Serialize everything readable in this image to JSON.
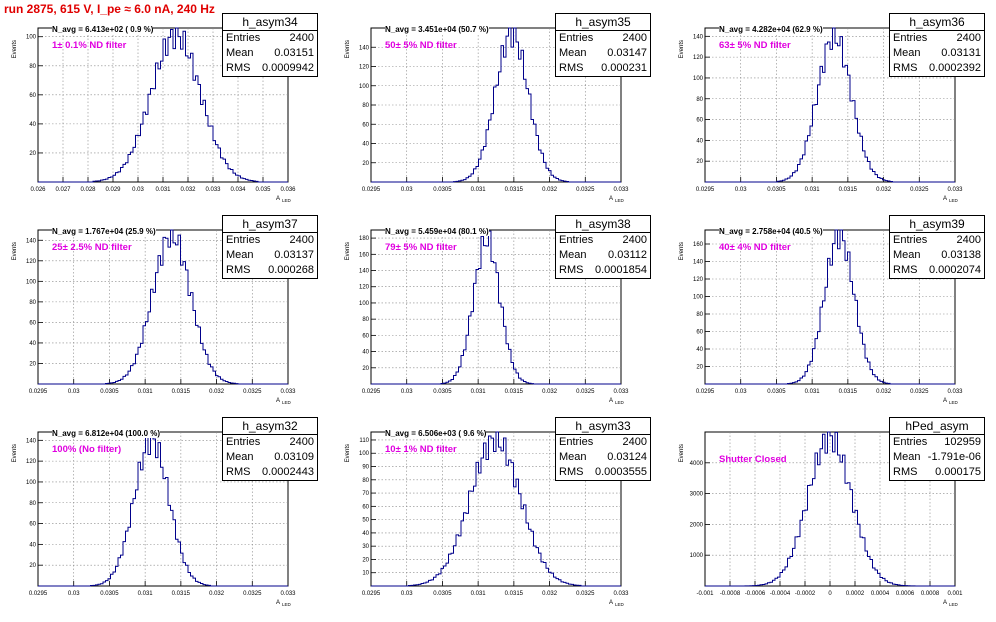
{
  "header": {
    "title": "run 2875,   615 V, I_pe ≈ 6.0 nA, 240 Hz"
  },
  "stat_labels": {
    "entries": "Entries",
    "mean": "Mean",
    "rms": "RMS"
  },
  "axis_labels": {
    "y": "Events",
    "x": "A",
    "x_sub": "LED"
  },
  "colors": {
    "histogram": "#00008b",
    "annotation": "#e000e0",
    "title": "#e00000",
    "grid": "#888888"
  },
  "chart_data": [
    {
      "type": "bar",
      "name": "h_asym34",
      "navg": "N_avg = 6.413e+02 ( 0.9 %)",
      "filter": "1± 0.1% ND filter",
      "entries": "2400",
      "mean": "0.03151",
      "rms": "0.0009942",
      "mean_value": 0.03151,
      "rms_value": 0.0009942,
      "peak": 101,
      "xlim": [
        0.026,
        0.036
      ],
      "ylim": [
        0,
        106
      ],
      "xticks": [
        "0.026",
        "0.027",
        "0.028",
        "0.029",
        "0.03",
        "0.031",
        "0.032",
        "0.033",
        "0.034",
        "0.035",
        "0.036"
      ],
      "yticks": [
        "20",
        "40",
        "60",
        "80",
        "100"
      ],
      "grid": true
    },
    {
      "type": "bar",
      "name": "h_asym35",
      "navg": "N_avg = 3.451e+04 (50.7 %)",
      "filter": "50± 5% ND filter",
      "entries": "2400",
      "mean": "0.03147",
      "rms": "0.000231",
      "mean_value": 0.03147,
      "rms_value": 0.000231,
      "peak": 154,
      "xlim": [
        0.0295,
        0.033
      ],
      "ylim": [
        0,
        160
      ],
      "xticks": [
        "0.0295",
        "0.03",
        "0.0305",
        "0.031",
        "0.0315",
        "0.032",
        "0.0325",
        "0.033"
      ],
      "yticks": [
        "20",
        "40",
        "60",
        "80",
        "100",
        "120",
        "140"
      ],
      "grid": true
    },
    {
      "type": "bar",
      "name": "h_asym36",
      "navg": "N_avg = 4.282e+04 (62.9 %)",
      "filter": "63± 5% ND filter",
      "entries": "2400",
      "mean": "0.03131",
      "rms": "0.0002392",
      "mean_value": 0.03131,
      "rms_value": 0.0002392,
      "peak": 140,
      "xlim": [
        0.0295,
        0.033
      ],
      "ylim": [
        0,
        148
      ],
      "xticks": [
        "0.0295",
        "0.03",
        "0.0305",
        "0.031",
        "0.0315",
        "0.032",
        "0.0325",
        "0.033"
      ],
      "yticks": [
        "20",
        "40",
        "60",
        "80",
        "100",
        "120",
        "140"
      ],
      "grid": true
    },
    {
      "type": "bar",
      "name": "h_asym37",
      "navg": "N_avg = 1.767e+04 (25.9 %)",
      "filter": "25± 2.5% ND filter",
      "entries": "2400",
      "mean": "0.03137",
      "rms": "0.000268",
      "mean_value": 0.03137,
      "rms_value": 0.000268,
      "peak": 145,
      "xlim": [
        0.0295,
        0.033
      ],
      "ylim": [
        0,
        150
      ],
      "xticks": [
        "0.0295",
        "0.03",
        "0.0305",
        "0.031",
        "0.0315",
        "0.032",
        "0.0325",
        "0.033"
      ],
      "yticks": [
        "20",
        "40",
        "60",
        "80",
        "100",
        "120",
        "140"
      ],
      "grid": true
    },
    {
      "type": "bar",
      "name": "h_asym38",
      "navg": "N_avg = 5.459e+04 (80.1 %)",
      "filter": "79± 5% ND filter",
      "entries": "2400",
      "mean": "0.03112",
      "rms": "0.0001854",
      "mean_value": 0.03112,
      "rms_value": 0.0001854,
      "peak": 178,
      "xlim": [
        0.0295,
        0.033
      ],
      "ylim": [
        0,
        190
      ],
      "xticks": [
        "0.0295",
        "0.03",
        "0.0305",
        "0.031",
        "0.0315",
        "0.032",
        "0.0325",
        "0.033"
      ],
      "yticks": [
        "20",
        "40",
        "60",
        "80",
        "100",
        "120",
        "140",
        "160",
        "180"
      ],
      "grid": true
    },
    {
      "type": "bar",
      "name": "h_asym39",
      "navg": "N_avg = 2.758e+04 (40.5 %)",
      "filter": "40± 4% ND filter",
      "entries": "2400",
      "mean": "0.03138",
      "rms": "0.0002074",
      "mean_value": 0.03138,
      "rms_value": 0.0002074,
      "peak": 170,
      "xlim": [
        0.0295,
        0.033
      ],
      "ylim": [
        0,
        176
      ],
      "xticks": [
        "0.0295",
        "0.03",
        "0.0305",
        "0.031",
        "0.0315",
        "0.032",
        "0.0325",
        "0.033"
      ],
      "yticks": [
        "20",
        "40",
        "60",
        "80",
        "100",
        "120",
        "140",
        "160"
      ],
      "grid": true
    },
    {
      "type": "bar",
      "name": "h_asym32",
      "navg": "N_avg = 6.812e+04 (100.0 %)",
      "filter": "100% (No filter)",
      "entries": "2400",
      "mean": "0.03109",
      "rms": "0.0002443",
      "mean_value": 0.03109,
      "rms_value": 0.0002443,
      "peak": 140,
      "xlim": [
        0.0295,
        0.033
      ],
      "ylim": [
        0,
        148
      ],
      "xticks": [
        "0.0295",
        "0.03",
        "0.0305",
        "0.031",
        "0.0315",
        "0.032",
        "0.0325",
        "0.033"
      ],
      "yticks": [
        "20",
        "40",
        "60",
        "80",
        "100",
        "120",
        "140"
      ],
      "grid": true
    },
    {
      "type": "bar",
      "name": "h_asym33",
      "navg": "N_avg = 6.506e+03 ( 9.6 %)",
      "filter": "10± 1% ND filter",
      "entries": "2400",
      "mean": "0.03124",
      "rms": "0.0003555",
      "mean_value": 0.03124,
      "rms_value": 0.0003555,
      "peak": 110,
      "xlim": [
        0.0295,
        0.033
      ],
      "ylim": [
        0,
        116
      ],
      "xticks": [
        "0.0295",
        "0.03",
        "0.0305",
        "0.031",
        "0.0315",
        "0.032",
        "0.0325",
        "0.033"
      ],
      "yticks": [
        "10",
        "20",
        "30",
        "40",
        "50",
        "60",
        "70",
        "80",
        "90",
        "100",
        "110"
      ],
      "grid": true
    },
    {
      "type": "bar",
      "name": "hPed_asym",
      "navg": "",
      "filter": "Shutter Closed",
      "entries": "102959",
      "mean": "-1.791e-06",
      "rms": "0.000175",
      "mean_value": -1.791e-06,
      "rms_value": 0.000175,
      "peak": 4800,
      "xlim": [
        -0.001,
        0.001
      ],
      "ylim": [
        0,
        5000
      ],
      "xticks": [
        "-0.001",
        "-0.0008",
        "-0.0006",
        "-0.0004",
        "-0.0002",
        "0",
        "0.0002",
        "0.0004",
        "0.0006",
        "0.0008",
        "0.001"
      ],
      "yticks": [
        "1000",
        "2000",
        "3000",
        "4000"
      ],
      "grid": true
    }
  ]
}
